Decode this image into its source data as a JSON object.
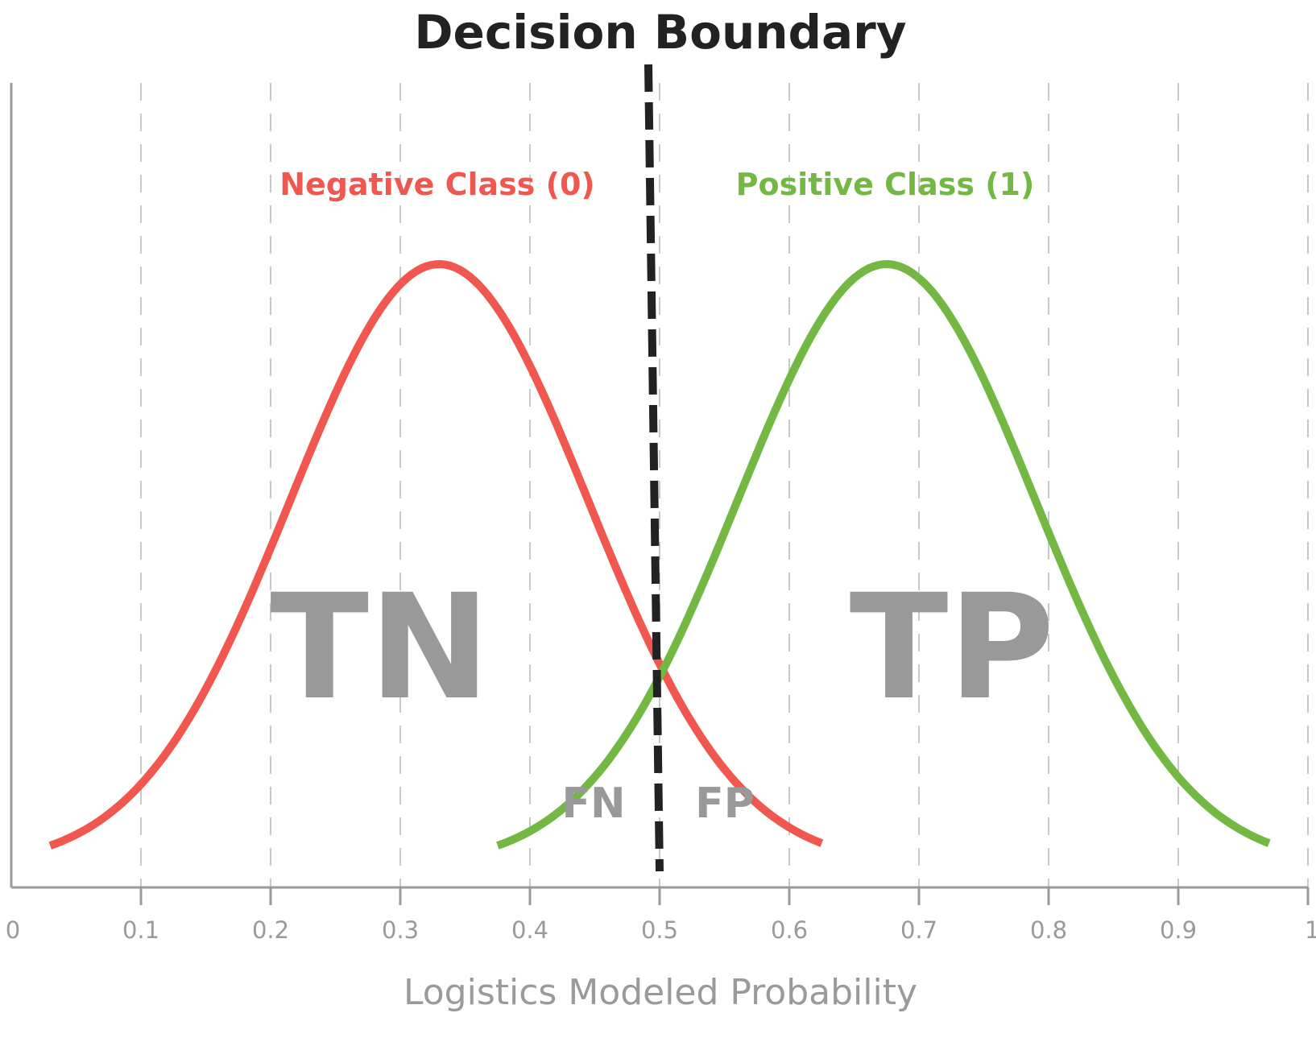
{
  "chart_data": {
    "type": "line",
    "title": "Decision Boundary",
    "xlabel": "Logistics Modeled Probability",
    "ylabel": "",
    "xlim": [
      0,
      1
    ],
    "xticks": [
      "0",
      "0.1",
      "0.2",
      "0.3",
      "0.4",
      "0.5",
      "0.6",
      "0.7",
      "0.8",
      "0.9",
      "1"
    ],
    "grid": "vertical dashed at each x tick",
    "decision_boundary": 0.5,
    "series": [
      {
        "name": "Negative Class (0)",
        "color": "#f0574f",
        "mean": 0.33,
        "x_range": [
          0.03,
          0.625
        ]
      },
      {
        "name": "Positive Class (1)",
        "color": "#72b843",
        "mean": 0.675,
        "x_range": [
          0.375,
          0.97
        ]
      }
    ],
    "regions": {
      "tn": "TN",
      "tp": "TP",
      "fn": "FN",
      "fp": "FP"
    }
  }
}
